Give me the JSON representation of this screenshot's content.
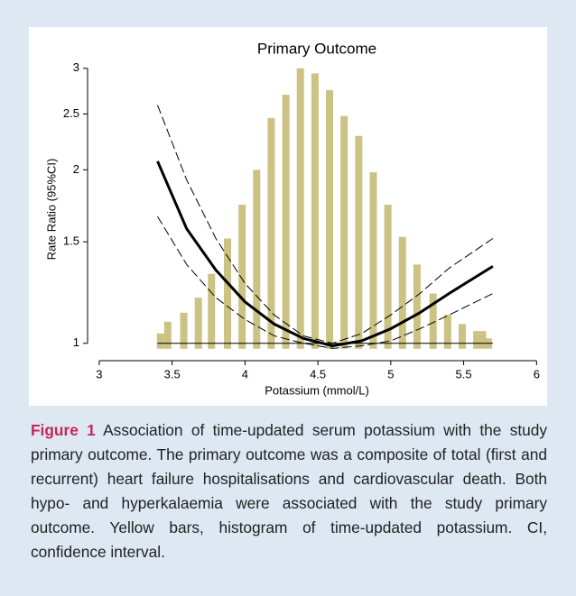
{
  "chart_data": {
    "type": "line",
    "title": "Primary Outcome",
    "x_label": "Potassium (mmol/L)",
    "y_label": "Rate Ratio (95%CI)",
    "x": [
      3.4,
      3.6,
      3.8,
      4.0,
      4.2,
      4.4,
      4.6,
      4.8,
      5.0,
      5.2,
      5.4,
      5.7
    ],
    "series": [
      {
        "color": "#000000",
        "linestyle": "solid",
        "values": [
          2.07,
          1.58,
          1.34,
          1.18,
          1.08,
          1.02,
          0.99,
          1.01,
          1.06,
          1.13,
          1.22,
          1.36
        ]
      },
      {
        "color": "#000000",
        "linestyle": "dashed",
        "values": [
          2.59,
          1.92,
          1.52,
          1.27,
          1.12,
          1.03,
          1.0,
          1.04,
          1.12,
          1.22,
          1.35,
          1.52
        ]
      },
      {
        "color": "#000000",
        "linestyle": "dashed",
        "values": [
          1.66,
          1.37,
          1.2,
          1.1,
          1.03,
          1.0,
          0.98,
          0.99,
          1.01,
          1.06,
          1.12,
          1.22
        ]
      }
    ],
    "histogram": {
      "color": "#cbc283",
      "x": [
        3.42,
        3.47,
        3.58,
        3.68,
        3.77,
        3.88,
        3.98,
        4.08,
        4.18,
        4.28,
        4.38,
        4.48,
        4.58,
        4.68,
        4.78,
        4.88,
        4.98,
        5.08,
        5.18,
        5.29,
        5.39,
        5.49,
        5.59,
        5.63,
        5.67
      ],
      "values": [
        1.04,
        1.09,
        1.13,
        1.2,
        1.32,
        1.52,
        1.74,
        2.0,
        2.46,
        2.7,
        3.0,
        2.94,
        2.75,
        2.48,
        2.29,
        1.98,
        1.74,
        1.53,
        1.37,
        1.22,
        1.12,
        1.08,
        1.05,
        1.05,
        1.02
      ]
    },
    "hline": 1,
    "log_y": true,
    "xlim": [
      2.92,
      6.06
    ],
    "xticks": [
      3,
      3.5,
      4,
      4.5,
      5,
      5.5,
      6
    ],
    "ylim": [
      0.933,
      3.13
    ],
    "yticks": [
      1,
      1.5,
      2,
      2.5,
      3
    ]
  },
  "caption": {
    "label": "Figure 1",
    "text": "Association of time-updated serum potassium with the study primary outcome. The primary outcome was a composite of total (first and recurrent) heart failure hospitalisations and cardiovascular death. Both hypo- and hyperkalaemia were associated with the study primary outcome. Yellow bars, histogram of time-updated potassium. CI, confidence interval."
  }
}
